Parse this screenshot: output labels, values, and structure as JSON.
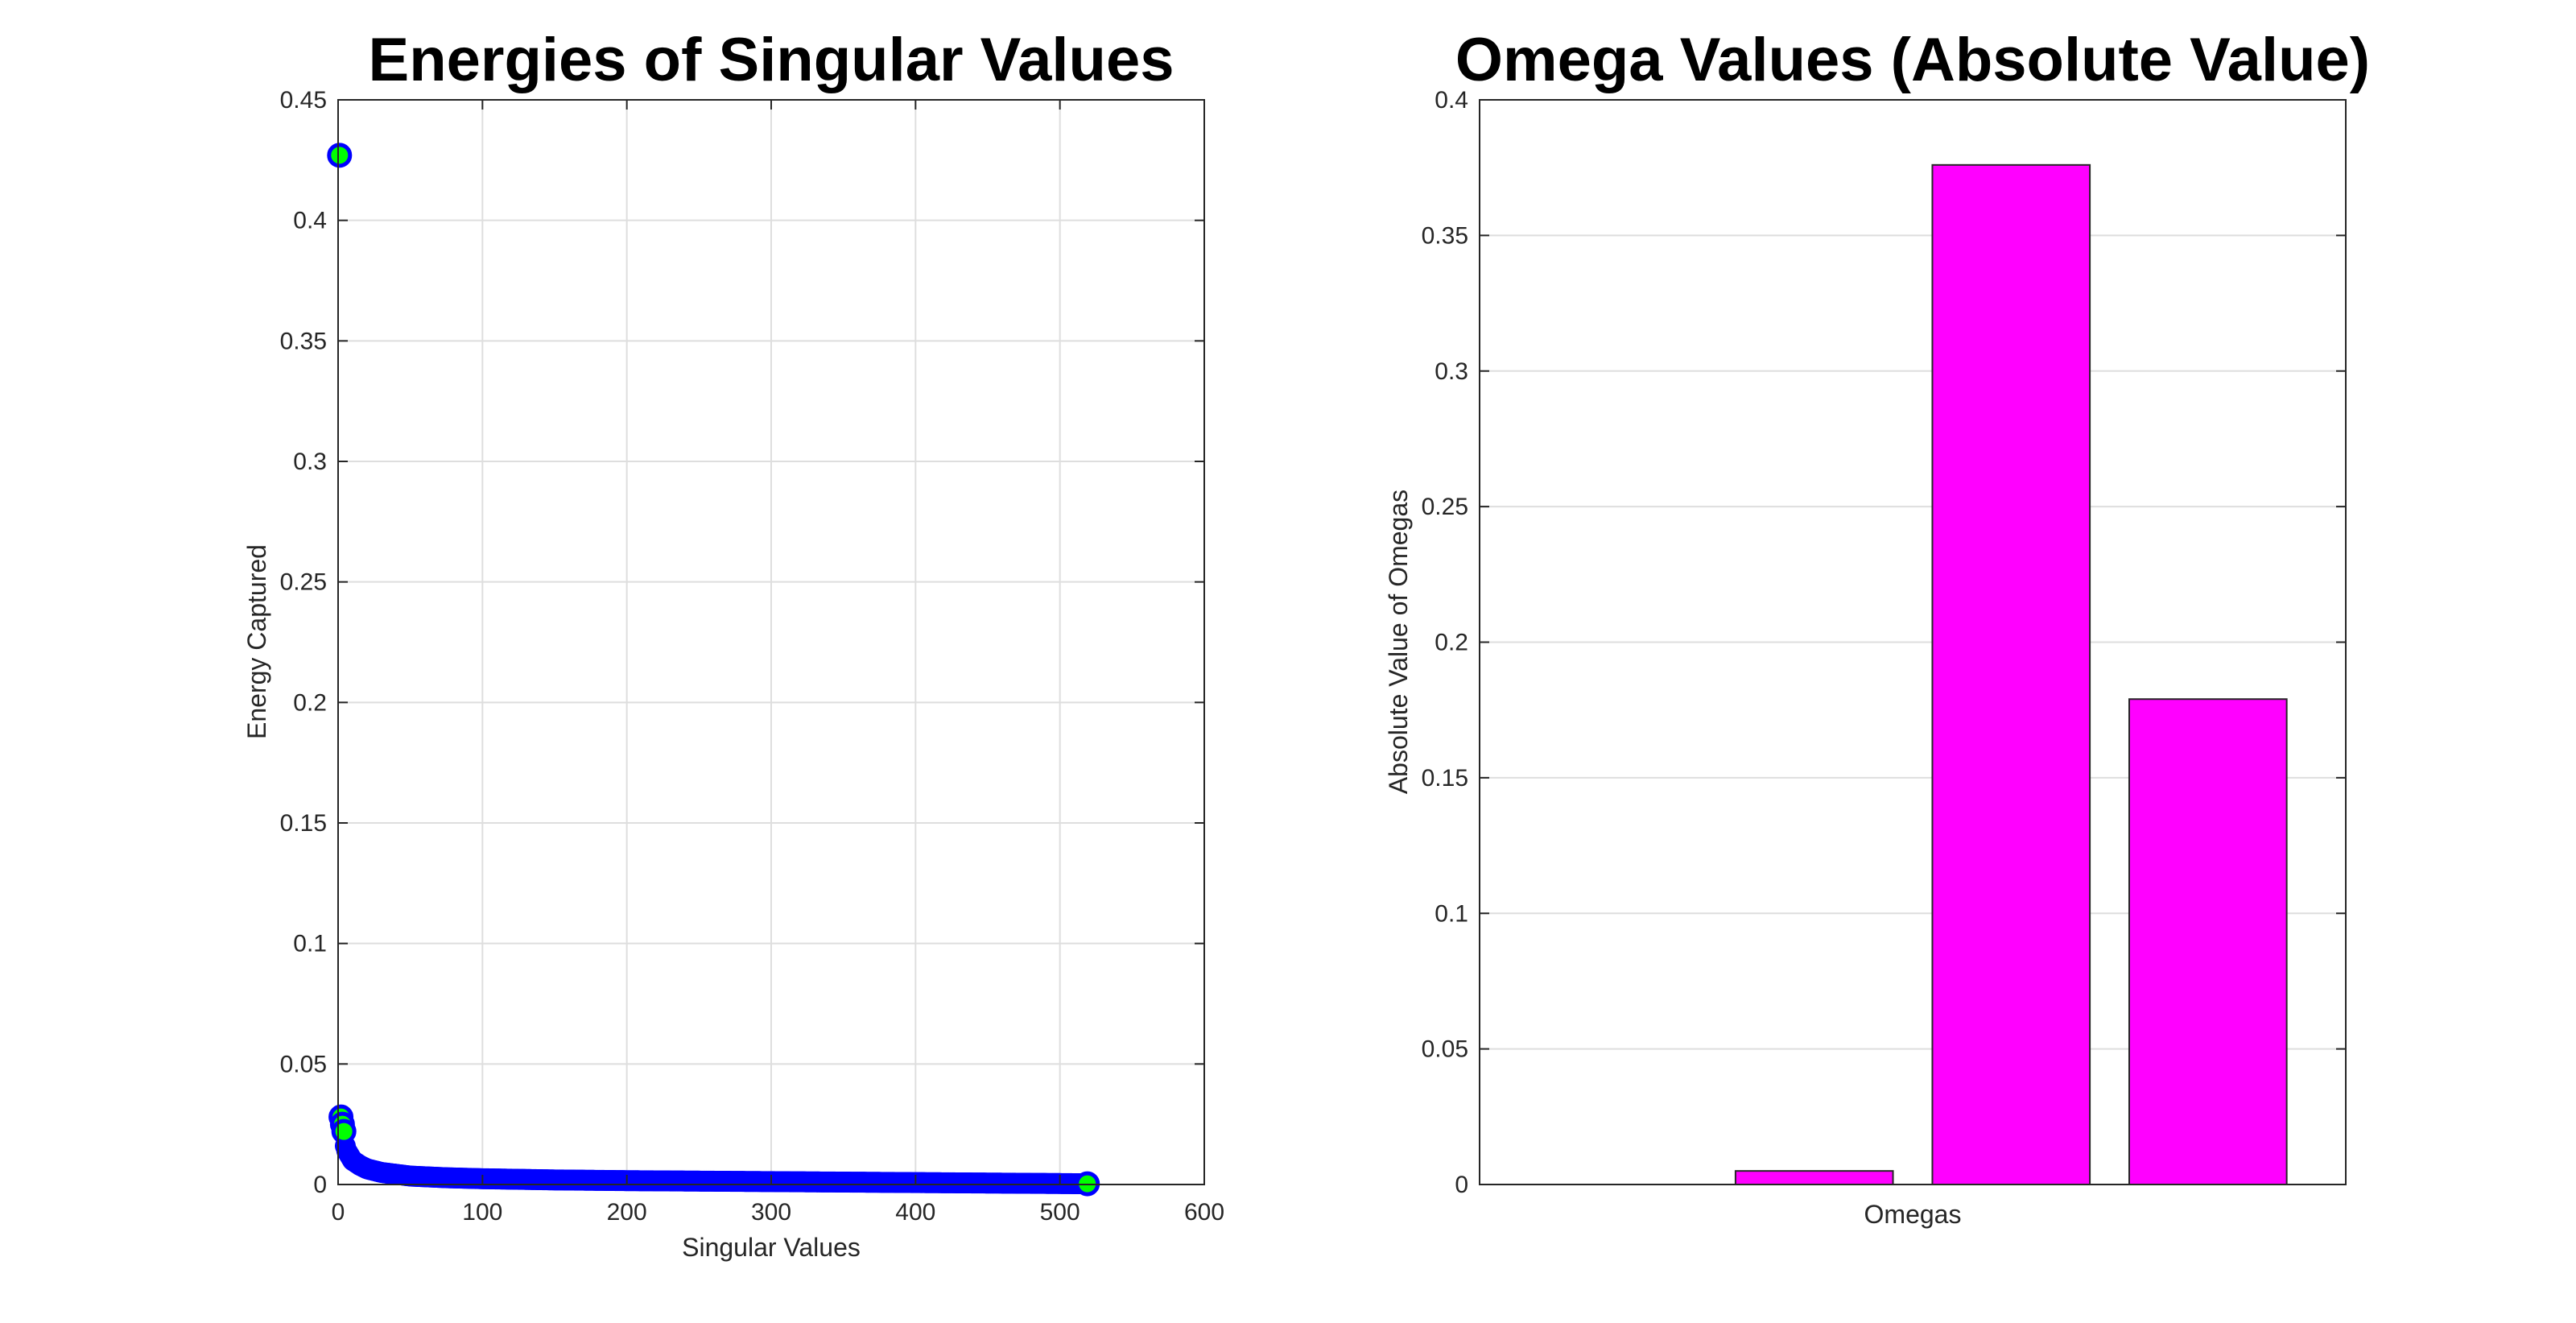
{
  "chart_data": [
    {
      "type": "scatter",
      "title": "Energies of Singular Values",
      "xlabel": "Singular Values",
      "ylabel": "Energy Captured",
      "xlim": [
        0,
        600
      ],
      "ylim": [
        0,
        0.45
      ],
      "xticks": [
        "0",
        "100",
        "200",
        "300",
        "400",
        "500",
        "600"
      ],
      "yticks": [
        "0",
        "0.05",
        "0.1",
        "0.15",
        "0.2",
        "0.25",
        "0.3",
        "0.35",
        "0.4",
        "0.45"
      ],
      "grid": true,
      "marker_edge_color": "#0000ff",
      "marker_face_color": "#00ff00",
      "points": [
        [
          1,
          0.427
        ],
        [
          2,
          0.028
        ],
        [
          3,
          0.025
        ],
        [
          4,
          0.022
        ],
        [
          5,
          0.016
        ],
        [
          6,
          0.014
        ],
        [
          8,
          0.012
        ],
        [
          10,
          0.01
        ],
        [
          15,
          0.008
        ],
        [
          20,
          0.0065
        ],
        [
          30,
          0.005
        ],
        [
          50,
          0.0035
        ],
        [
          75,
          0.0028
        ],
        [
          100,
          0.0024
        ],
        [
          150,
          0.0019
        ],
        [
          200,
          0.0016
        ],
        [
          250,
          0.0014
        ],
        [
          300,
          0.0012
        ],
        [
          350,
          0.001
        ],
        [
          400,
          0.0008
        ],
        [
          450,
          0.0006
        ],
        [
          500,
          0.0004
        ],
        [
          519,
          0.0003
        ]
      ]
    },
    {
      "type": "bar",
      "title": "Omega Values (Absolute Value)",
      "xlabel": "Omegas",
      "ylabel": "Absolute Value of Omegas",
      "ylim": [
        0,
        0.4
      ],
      "yticks": [
        "0",
        "0.05",
        "0.1",
        "0.15",
        "0.2",
        "0.25",
        "0.3",
        "0.35",
        "0.4"
      ],
      "grid": true,
      "bar_color": "#ff00ff",
      "values": [
        0.005,
        0.376,
        0.179
      ]
    }
  ]
}
